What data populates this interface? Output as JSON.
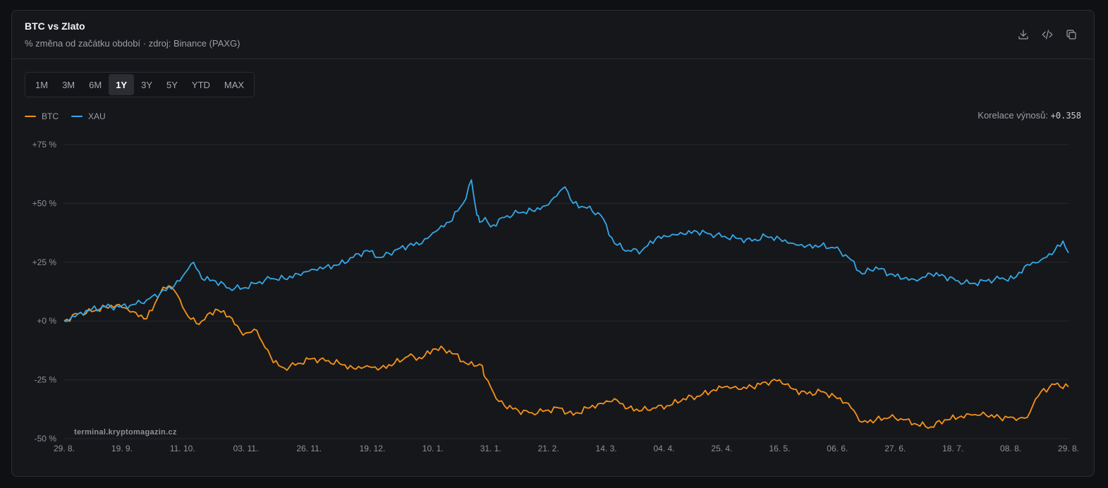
{
  "header": {
    "title": "BTC vs Zlato",
    "subtitle": "% změna od začátku období · zdroj: Binance (PAXG)",
    "actions": [
      {
        "icon": "download-icon"
      },
      {
        "icon": "code-icon"
      },
      {
        "icon": "copy-icon"
      }
    ]
  },
  "ranges": [
    "1M",
    "3M",
    "6M",
    "1Y",
    "3Y",
    "5Y",
    "YTD",
    "MAX"
  ],
  "active_range": "1Y",
  "correlation": {
    "label": "Korelace výnosů:",
    "value": "+0.358"
  },
  "watermark": "terminal.kryptomagazin.cz",
  "colors": {
    "btc": "#f7931a",
    "xau": "#35a7e8",
    "grid": "#26282d",
    "background": "#16171a"
  },
  "chart_data": {
    "type": "line",
    "y_unit": "%",
    "ylim": [
      -50,
      75
    ],
    "y_ticks": [
      75,
      50,
      25,
      0,
      -25,
      -50
    ],
    "y_tick_labels": [
      "+75 %",
      "+50 %",
      "+25 %",
      "+0 %",
      "-25 %",
      "-50 %"
    ],
    "x_ticks": [
      0,
      21,
      43,
      66,
      89,
      112,
      134,
      155,
      176,
      197,
      218,
      239,
      260,
      281,
      302,
      323,
      344,
      365
    ],
    "x_tick_labels": [
      "29. 8.",
      "19. 9.",
      "11. 10.",
      "03. 11.",
      "26. 11.",
      "19. 12.",
      "10. 1.",
      "31. 1.",
      "21. 2.",
      "14. 3.",
      "04. 4.",
      "25. 4.",
      "16. 5.",
      "06. 6.",
      "27. 6.",
      "18. 7.",
      "08. 8.",
      "29. 8."
    ],
    "xlim": [
      0,
      365
    ],
    "grid": true,
    "legend_position": "top-left",
    "series": [
      {
        "name": "BTC",
        "color": "#f7931a",
        "x": [
          0,
          5,
          10,
          15,
          20,
          25,
          30,
          35,
          38,
          40,
          43,
          45,
          48,
          50,
          55,
          60,
          65,
          70,
          72,
          75,
          78,
          80,
          85,
          90,
          95,
          100,
          105,
          110,
          115,
          120,
          125,
          130,
          134,
          138,
          142,
          146,
          150,
          152,
          153,
          155,
          157,
          160,
          165,
          170,
          175,
          180,
          183,
          185,
          190,
          195,
          200,
          205,
          210,
          215,
          220,
          225,
          230,
          235,
          240,
          245,
          250,
          255,
          260,
          262,
          265,
          270,
          275,
          280,
          285,
          290,
          295,
          300,
          305,
          310,
          315,
          320,
          325,
          330,
          335,
          340,
          345,
          348,
          350,
          352,
          355,
          360,
          365
        ],
        "y": [
          0,
          3,
          4,
          6,
          7,
          4,
          1,
          12,
          15,
          13,
          6,
          2,
          -1,
          0,
          5,
          2,
          -6,
          -4,
          -9,
          -15,
          -19,
          -20,
          -18,
          -16,
          -17,
          -18,
          -20,
          -19,
          -20,
          -18,
          -15,
          -16,
          -12,
          -12,
          -14,
          -18,
          -19,
          -19,
          -24,
          -28,
          -33,
          -36,
          -38,
          -39,
          -38,
          -37,
          -39,
          -40,
          -37,
          -35,
          -33,
          -37,
          -38,
          -37,
          -36,
          -33,
          -32,
          -30,
          -28,
          -29,
          -28,
          -26,
          -25,
          -27,
          -29,
          -31,
          -30,
          -32,
          -35,
          -43,
          -42,
          -41,
          -42,
          -44,
          -45,
          -42,
          -41,
          -40,
          -40,
          -41,
          -41,
          -41,
          -41,
          -36,
          -30,
          -27,
          -28
        ]
      },
      {
        "name": "XAU",
        "color": "#35a7e8",
        "x": [
          0,
          5,
          10,
          15,
          20,
          25,
          30,
          35,
          40,
          42,
          45,
          47,
          50,
          55,
          60,
          65,
          70,
          75,
          80,
          85,
          90,
          95,
          100,
          105,
          110,
          115,
          120,
          125,
          130,
          135,
          140,
          145,
          148,
          150,
          151,
          153,
          155,
          160,
          165,
          170,
          175,
          180,
          182,
          185,
          190,
          195,
          200,
          205,
          210,
          215,
          220,
          225,
          230,
          235,
          240,
          245,
          250,
          255,
          260,
          265,
          270,
          275,
          280,
          285,
          290,
          295,
          300,
          305,
          310,
          315,
          320,
          325,
          330,
          335,
          340,
          345,
          350,
          355,
          360,
          363,
          365
        ],
        "y": [
          0,
          3,
          5,
          6,
          6,
          7,
          9,
          12,
          15,
          17,
          22,
          25,
          18,
          17,
          14,
          14,
          16,
          18,
          18,
          20,
          22,
          23,
          24,
          27,
          30,
          27,
          30,
          32,
          33,
          38,
          42,
          50,
          60,
          45,
          42,
          44,
          40,
          44,
          46,
          47,
          49,
          55,
          57,
          50,
          48,
          45,
          33,
          30,
          30,
          35,
          36,
          37,
          38,
          37,
          36,
          35,
          34,
          36,
          35,
          33,
          32,
          32,
          31,
          27,
          20,
          23,
          20,
          18,
          17,
          20,
          19,
          17,
          16,
          17,
          18,
          18,
          24,
          26,
          30,
          34,
          29
        ]
      }
    ]
  }
}
